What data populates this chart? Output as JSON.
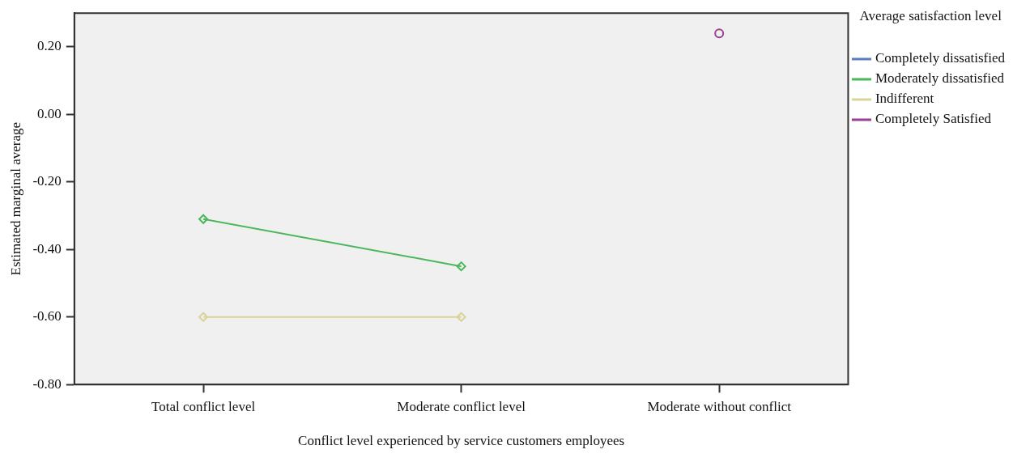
{
  "chart_data": {
    "type": "line",
    "xlabel": "Conflict level experienced by service customers employees",
    "ylabel": "Estimated marginal average",
    "legend_title": "Average satisfaction level",
    "legend": "right",
    "grid": false,
    "categories": [
      "Total conflict level",
      "Moderate conflict level",
      "Moderate without conflict"
    ],
    "ylim": [
      -0.8,
      0.3
    ],
    "yticks": [
      {
        "value": -0.8,
        "label": "-0.80"
      },
      {
        "value": -0.6,
        "label": "-0.60"
      },
      {
        "value": -0.4,
        "label": "-0.40"
      },
      {
        "value": -0.2,
        "label": "-0.20"
      },
      {
        "value": 0,
        "label": "0.00"
      },
      {
        "value": 0.2,
        "label": "0.20"
      }
    ],
    "series": [
      {
        "name": "Completely dissatisfied",
        "color": "#5a7ec0",
        "marker": "diamond",
        "values": [
          null,
          null,
          null
        ]
      },
      {
        "name": "Moderately dissatisfied",
        "color": "#4cb75a",
        "marker": "diamond",
        "values": [
          -0.31,
          -0.45,
          null
        ]
      },
      {
        "name": "Indifferent",
        "color": "#d8d49a",
        "marker": "diamond",
        "values": [
          -0.6,
          -0.6,
          null
        ]
      },
      {
        "name": "Completely Satisfied",
        "color": "#9b3f96",
        "marker": "circle",
        "values": [
          null,
          null,
          0.24
        ]
      }
    ]
  }
}
